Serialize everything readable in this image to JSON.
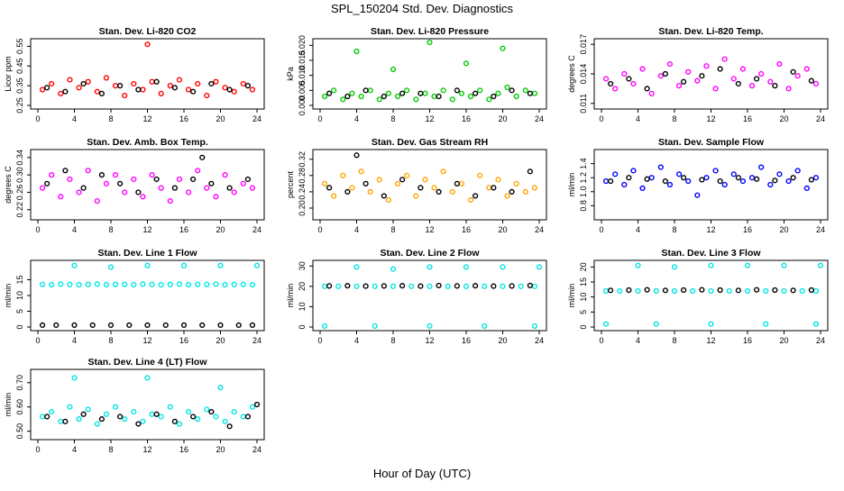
{
  "figure": {
    "title": "SPL_150204  Std. Dev. Diagnostics",
    "xlabel": "Hour of Day (UTC)"
  },
  "chart_data": [
    {
      "type": "scatter",
      "title": "Stan. Dev. Li-820 CO2",
      "ylabel": "Licor ppm",
      "xlim": [
        0,
        24
      ],
      "xticks": [
        0,
        4,
        8,
        12,
        16,
        20,
        24
      ],
      "ylim": [
        0.25,
        0.57
      ],
      "yticks": [
        "0.25",
        "0.35",
        "0.45",
        "0.55"
      ],
      "series": [
        {
          "color": "#ff0000",
          "x": [
            0.5,
            1.5,
            2.5,
            3.5,
            4.5,
            5.5,
            6.5,
            7.5,
            8.5,
            9.5,
            10.5,
            11.5,
            12.0,
            12.5,
            13.5,
            14.5,
            15.5,
            16.5,
            17.5,
            18.5,
            19.5,
            20.5,
            21.5,
            22.5,
            23.5
          ],
          "y": [
            0.33,
            0.36,
            0.31,
            0.38,
            0.34,
            0.37,
            0.32,
            0.39,
            0.35,
            0.3,
            0.36,
            0.33,
            0.56,
            0.37,
            0.31,
            0.35,
            0.38,
            0.33,
            0.36,
            0.3,
            0.37,
            0.34,
            0.32,
            0.36,
            0.33
          ]
        },
        {
          "color": "#000000",
          "x": [
            1,
            3,
            5,
            7,
            9,
            11,
            13,
            15,
            17,
            19,
            21,
            23
          ],
          "y": [
            0.34,
            0.32,
            0.36,
            0.31,
            0.35,
            0.33,
            0.37,
            0.34,
            0.32,
            0.36,
            0.33,
            0.35
          ]
        }
      ]
    },
    {
      "type": "scatter",
      "title": "Stan. Dev. Li-820 Pressure",
      "ylabel": "kPa",
      "xlim": [
        0,
        24
      ],
      "xticks": [
        0,
        4,
        8,
        12,
        16,
        20,
        24
      ],
      "ylim": [
        0,
        0.021
      ],
      "yticks": [
        "0.000",
        "0.005",
        "0.010",
        "0.015",
        "0.020"
      ],
      "series": [
        {
          "color": "#00cc00",
          "x": [
            0.5,
            1.5,
            2.5,
            3.5,
            4.0,
            4.5,
            5.5,
            6.5,
            7.5,
            8.0,
            8.5,
            9.5,
            10.5,
            11.5,
            12.0,
            12.5,
            13.5,
            14.5,
            15.5,
            16.0,
            16.5,
            17.5,
            18.5,
            19.5,
            20.0,
            20.5,
            21.5,
            22.5,
            23.5
          ],
          "y": [
            0.003,
            0.005,
            0.002,
            0.004,
            0.018,
            0.003,
            0.005,
            0.002,
            0.004,
            0.012,
            0.003,
            0.005,
            0.002,
            0.004,
            0.021,
            0.003,
            0.005,
            0.002,
            0.004,
            0.014,
            0.003,
            0.005,
            0.002,
            0.004,
            0.019,
            0.006,
            0.003,
            0.005,
            0.004
          ]
        },
        {
          "color": "#000000",
          "x": [
            1,
            3,
            5,
            7,
            9,
            11,
            13,
            15,
            17,
            19,
            21,
            23
          ],
          "y": [
            0.004,
            0.003,
            0.005,
            0.003,
            0.004,
            0.004,
            0.003,
            0.005,
            0.004,
            0.003,
            0.005,
            0.004
          ]
        }
      ]
    },
    {
      "type": "scatter",
      "title": "Stan. Dev. Li-820 Temp.",
      "ylabel": "degrees C",
      "xlim": [
        0,
        24
      ],
      "xticks": [
        0,
        4,
        8,
        12,
        16,
        20,
        24
      ],
      "ylim": [
        0.0108,
        0.0172
      ],
      "yticks": [
        "0.011",
        "0.014",
        "0.017"
      ],
      "series": [
        {
          "color": "#ff00ff",
          "x": [
            0.5,
            1.5,
            2.5,
            3.5,
            4.5,
            5.5,
            6.5,
            7.5,
            8.5,
            9.5,
            10.5,
            11.5,
            12.5,
            13.5,
            14.5,
            15.5,
            16.5,
            17.5,
            18.5,
            19.5,
            20.5,
            21.5,
            22.5,
            23.5
          ],
          "y": [
            0.0135,
            0.0125,
            0.014,
            0.013,
            0.0145,
            0.012,
            0.0138,
            0.015,
            0.0128,
            0.0142,
            0.0133,
            0.0148,
            0.0125,
            0.0155,
            0.0135,
            0.0145,
            0.0128,
            0.014,
            0.0132,
            0.015,
            0.0125,
            0.0138,
            0.0145,
            0.013
          ]
        },
        {
          "color": "#000000",
          "x": [
            1,
            3,
            5,
            7,
            9,
            11,
            13,
            15,
            17,
            19,
            21,
            23
          ],
          "y": [
            0.013,
            0.0135,
            0.0125,
            0.014,
            0.0132,
            0.0138,
            0.0145,
            0.013,
            0.0135,
            0.0128,
            0.0142,
            0.0133
          ]
        }
      ]
    },
    {
      "type": "scatter",
      "title": "Stan. Dev. Amb. Box Temp.",
      "ylabel": "degrees C",
      "xlim": [
        0,
        24
      ],
      "xticks": [
        0,
        4,
        8,
        12,
        16,
        20,
        24
      ],
      "ylim": [
        0.205,
        0.35
      ],
      "yticks": [
        "0.22",
        "0.26",
        "0.30",
        "0.34"
      ],
      "series": [
        {
          "color": "#ff00ff",
          "x": [
            0.5,
            1.5,
            2.5,
            3.5,
            4.5,
            5.5,
            6.5,
            7.5,
            8.5,
            9.5,
            10.5,
            11.5,
            12.5,
            13.5,
            14.5,
            15.5,
            16.5,
            17.5,
            18.5,
            19.5,
            20.5,
            21.5,
            22.5,
            23.5
          ],
          "y": [
            0.27,
            0.3,
            0.25,
            0.29,
            0.26,
            0.31,
            0.24,
            0.28,
            0.3,
            0.26,
            0.29,
            0.25,
            0.3,
            0.27,
            0.24,
            0.29,
            0.26,
            0.31,
            0.27,
            0.25,
            0.3,
            0.26,
            0.28,
            0.27
          ]
        },
        {
          "color": "#000000",
          "x": [
            1,
            3,
            5,
            7,
            9,
            11,
            13,
            15,
            17,
            18,
            19,
            21,
            23
          ],
          "y": [
            0.28,
            0.31,
            0.27,
            0.3,
            0.28,
            0.26,
            0.29,
            0.27,
            0.29,
            0.34,
            0.28,
            0.27,
            0.29
          ]
        }
      ]
    },
    {
      "type": "scatter",
      "title": "Stan. Dev. Gas Stream RH",
      "ylabel": "percent",
      "xlim": [
        0,
        24
      ],
      "xticks": [
        0,
        4,
        8,
        12,
        16,
        20,
        24
      ],
      "ylim": [
        0.18,
        0.335
      ],
      "yticks": [
        "0.20",
        "0.24",
        "0.28",
        "0.32"
      ],
      "series": [
        {
          "color": "#ffa500",
          "x": [
            0.5,
            1.5,
            2.5,
            3.5,
            4.5,
            5.5,
            6.5,
            7.5,
            8.5,
            9.5,
            10.5,
            11.5,
            12.5,
            13.5,
            14.5,
            15.5,
            16.5,
            17.5,
            18.5,
            19.5,
            20.5,
            21.5,
            22.5,
            23.5
          ],
          "y": [
            0.26,
            0.23,
            0.28,
            0.25,
            0.29,
            0.24,
            0.27,
            0.22,
            0.26,
            0.28,
            0.23,
            0.27,
            0.25,
            0.29,
            0.24,
            0.26,
            0.22,
            0.28,
            0.25,
            0.27,
            0.23,
            0.26,
            0.24,
            0.25
          ]
        },
        {
          "color": "#000000",
          "x": [
            1,
            3,
            4,
            5,
            7,
            9,
            11,
            13,
            15,
            17,
            19,
            21,
            23
          ],
          "y": [
            0.25,
            0.24,
            0.33,
            0.26,
            0.23,
            0.27,
            0.25,
            0.24,
            0.26,
            0.23,
            0.25,
            0.24,
            0.29
          ]
        }
      ]
    },
    {
      "type": "scatter",
      "title": "Stan. Dev. Sample Flow",
      "ylabel": "ml/min",
      "xlim": [
        0,
        24
      ],
      "xticks": [
        0,
        4,
        8,
        12,
        16,
        20,
        24
      ],
      "ylim": [
        0.65,
        1.55
      ],
      "yticks": [
        "0.8",
        "1.0",
        "1.2",
        "1.4"
      ],
      "series": [
        {
          "color": "#0000ff",
          "x": [
            0.5,
            1.5,
            2.5,
            3.5,
            4.5,
            5.5,
            6.5,
            7.5,
            8.5,
            9.5,
            10.5,
            11.5,
            12.5,
            13.5,
            14.5,
            15.5,
            16.5,
            17.5,
            18.5,
            19.5,
            20.5,
            21.5,
            22.5,
            23.5
          ],
          "y": [
            1.15,
            1.25,
            1.1,
            1.3,
            1.05,
            1.2,
            1.35,
            1.1,
            1.25,
            1.15,
            0.95,
            1.2,
            1.3,
            1.1,
            1.25,
            1.15,
            1.2,
            1.35,
            1.1,
            1.25,
            1.15,
            1.3,
            1.05,
            1.2
          ]
        },
        {
          "color": "#000000",
          "x": [
            1,
            3,
            5,
            7,
            9,
            11,
            13,
            15,
            17,
            19,
            21,
            23
          ],
          "y": [
            1.15,
            1.2,
            1.18,
            1.15,
            1.2,
            1.17,
            1.15,
            1.2,
            1.18,
            1.16,
            1.2,
            1.17
          ]
        }
      ]
    },
    {
      "type": "scatter",
      "title": "Stan. Dev. Line 1 Flow",
      "ylabel": "ml/min",
      "xlim": [
        0,
        24
      ],
      "xticks": [
        0,
        4,
        8,
        12,
        16,
        20,
        24
      ],
      "ylim": [
        0,
        20
      ],
      "yticks": [
        "0",
        "5",
        "10",
        "15"
      ],
      "series": [
        {
          "color": "#00e5e5",
          "x": [
            0.5,
            1.5,
            2.5,
            3.5,
            4.0,
            4.5,
            5.5,
            6.5,
            7.5,
            8.0,
            8.5,
            9.5,
            10.5,
            11.5,
            12.0,
            12.5,
            13.5,
            14.5,
            15.5,
            16.0,
            16.5,
            17.5,
            18.5,
            19.5,
            20.0,
            20.5,
            21.5,
            22.5,
            23.5,
            24.0
          ],
          "y": [
            13.5,
            13.4,
            13.6,
            13.5,
            19.5,
            13.4,
            13.5,
            13.6,
            13.4,
            19.0,
            13.5,
            13.5,
            13.4,
            13.6,
            19.5,
            13.5,
            13.4,
            13.5,
            13.6,
            19.5,
            13.4,
            13.5,
            13.5,
            13.6,
            19.5,
            13.4,
            13.5,
            13.5,
            13.4,
            19.5
          ]
        },
        {
          "color": "#000000",
          "x": [
            0.5,
            2,
            4,
            6,
            8,
            10,
            12,
            14,
            16,
            18,
            20,
            22,
            23.5
          ],
          "y": [
            0.6,
            0.6,
            0.6,
            0.6,
            0.6,
            0.6,
            0.6,
            0.6,
            0.6,
            0.6,
            0.6,
            0.6,
            0.6
          ]
        }
      ]
    },
    {
      "type": "scatter",
      "title": "Stan. Dev. Line 2 Flow",
      "ylabel": "ml/min",
      "xlim": [
        0,
        24
      ],
      "xticks": [
        0,
        4,
        8,
        12,
        16,
        20,
        24
      ],
      "ylim": [
        0,
        31
      ],
      "yticks": [
        "0",
        "10",
        "20",
        "30"
      ],
      "series": [
        {
          "color": "#00e5e5",
          "x": [
            0.5,
            2,
            4,
            6,
            8,
            10,
            12,
            14,
            16,
            18,
            20,
            22,
            23.5,
            4.0,
            8.0,
            12.0,
            16.0,
            20.0,
            24.0,
            0.5,
            6,
            12,
            18,
            23.5
          ],
          "y": [
            20,
            20,
            20,
            20,
            20,
            20,
            20,
            20,
            20,
            20,
            20,
            20,
            20,
            29.5,
            28.5,
            29.5,
            29.5,
            29.5,
            29.5,
            0.5,
            0.5,
            0.5,
            0.5,
            0.5
          ]
        },
        {
          "color": "#000000",
          "x": [
            1,
            3,
            5,
            7,
            9,
            11,
            13,
            15,
            17,
            19,
            21,
            23
          ],
          "y": [
            20.2,
            20.3,
            20.1,
            20.2,
            20.3,
            20.1,
            20.4,
            20.2,
            20.3,
            20.1,
            20.2,
            20.4
          ]
        }
      ]
    },
    {
      "type": "scatter",
      "title": "Stan. Dev. Line 3 Flow",
      "ylabel": "ml/min",
      "xlim": [
        0,
        24
      ],
      "xticks": [
        0,
        4,
        8,
        12,
        16,
        20,
        24
      ],
      "ylim": [
        0,
        21
      ],
      "yticks": [
        "0",
        "5",
        "10",
        "15",
        "20"
      ],
      "series": [
        {
          "color": "#00e5e5",
          "x": [
            0.5,
            2,
            4,
            6,
            8,
            10,
            12,
            14,
            16,
            18,
            20,
            22,
            23.5,
            4.0,
            8.0,
            12.0,
            16.0,
            20.0,
            24.0,
            0.5,
            6,
            12,
            18,
            23.5
          ],
          "y": [
            12,
            12,
            12,
            12,
            12,
            12,
            12,
            12,
            12,
            12,
            12,
            12,
            12,
            20.5,
            20,
            20.5,
            20.5,
            20.5,
            20.5,
            1,
            1,
            1,
            1,
            1
          ]
        },
        {
          "color": "#000000",
          "x": [
            1,
            3,
            5,
            7,
            9,
            11,
            13,
            15,
            17,
            19,
            21,
            23
          ],
          "y": [
            12.2,
            12.3,
            12.4,
            12.2,
            12.3,
            12.4,
            12.3,
            12.2,
            12.4,
            12.3,
            12.2,
            12.3
          ]
        }
      ]
    },
    {
      "type": "scatter",
      "title": "Stan. Dev. Line 4 (LT) Flow",
      "ylabel": "ml/min",
      "xlim": [
        0,
        24
      ],
      "xticks": [
        0,
        4,
        8,
        12,
        16,
        20,
        24
      ],
      "ylim": [
        0.48,
        0.74
      ],
      "yticks": [
        "0.50",
        "0.60",
        "0.70"
      ],
      "series": [
        {
          "color": "#00e5e5",
          "x": [
            0.5,
            1.5,
            2.5,
            3.5,
            4.0,
            4.5,
            5.5,
            6.5,
            7.5,
            8.5,
            9.5,
            10.5,
            11.5,
            12.0,
            12.5,
            13.5,
            14.5,
            15.5,
            16.5,
            17.5,
            18.5,
            19.5,
            20.0,
            20.5,
            21.5,
            22.5,
            23.5
          ],
          "y": [
            0.56,
            0.58,
            0.54,
            0.6,
            0.72,
            0.55,
            0.59,
            0.53,
            0.57,
            0.6,
            0.55,
            0.58,
            0.54,
            0.72,
            0.57,
            0.56,
            0.6,
            0.53,
            0.58,
            0.55,
            0.59,
            0.56,
            0.68,
            0.54,
            0.58,
            0.56,
            0.6
          ]
        },
        {
          "color": "#000000",
          "x": [
            1,
            3,
            5,
            7,
            9,
            11,
            13,
            15,
            17,
            19,
            21,
            23,
            24
          ],
          "y": [
            0.56,
            0.54,
            0.57,
            0.55,
            0.56,
            0.53,
            0.57,
            0.54,
            0.56,
            0.58,
            0.52,
            0.56,
            0.61
          ]
        }
      ]
    }
  ]
}
